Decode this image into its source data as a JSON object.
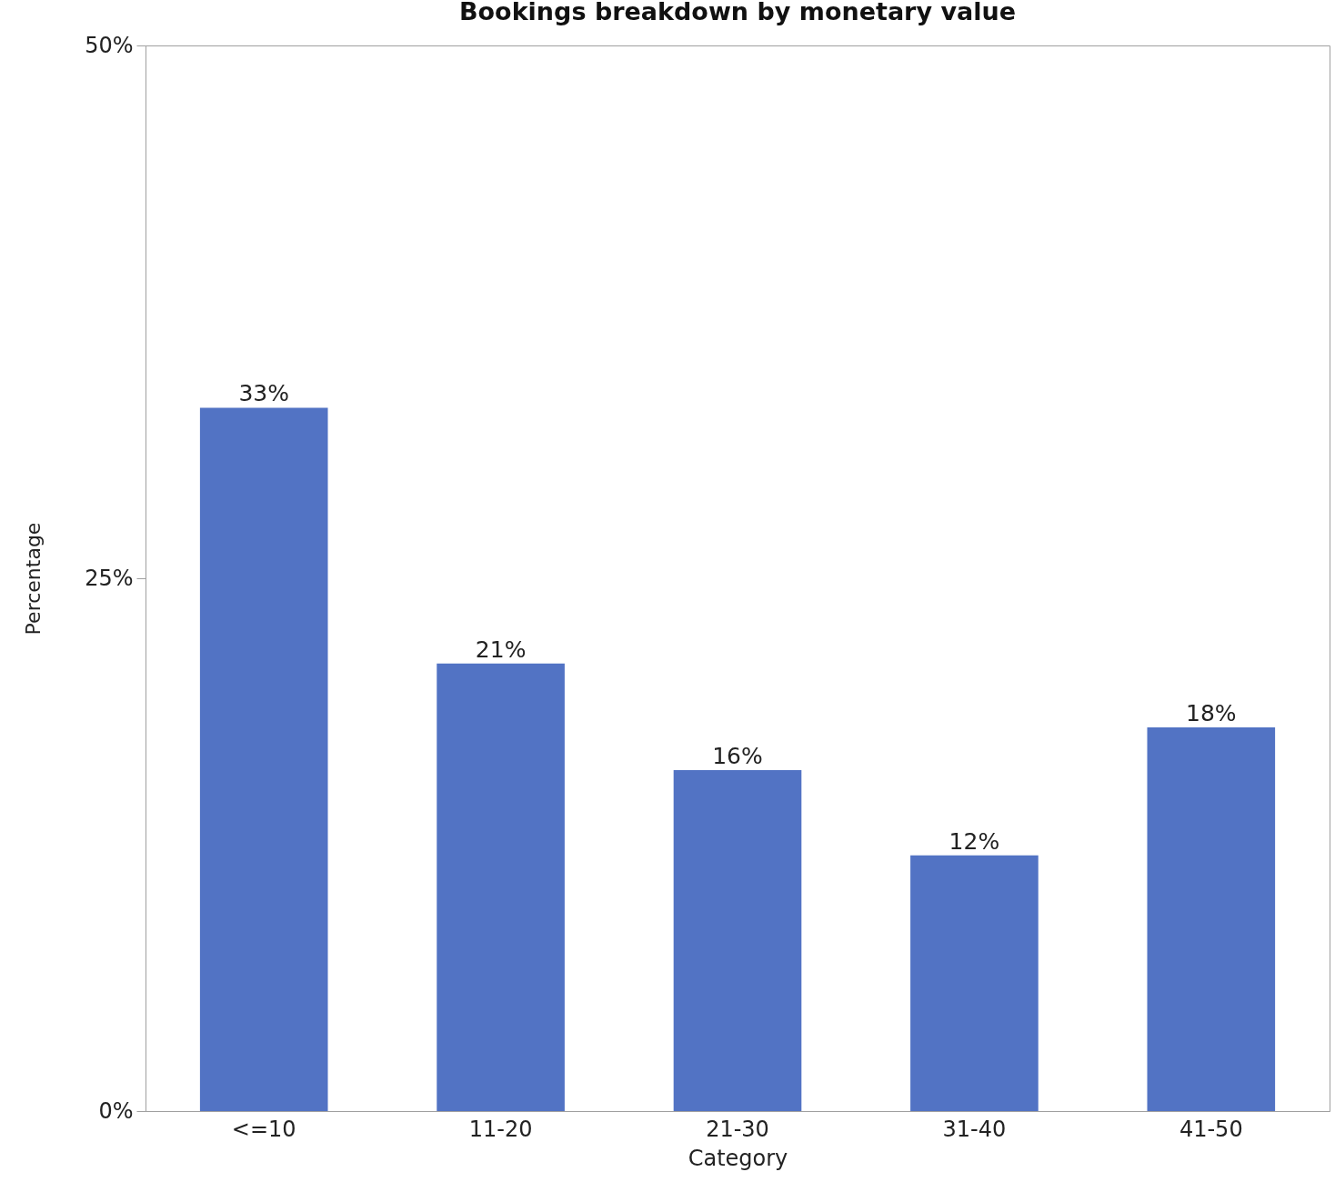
{
  "chart_data": {
    "type": "bar",
    "title": "Bookings breakdown by monetary value",
    "xlabel": "Category",
    "ylabel": "Percentage",
    "categories": [
      "<=10",
      "11-20",
      "21-30",
      "31-40",
      "41-50"
    ],
    "values": [
      33,
      21,
      16,
      12,
      18
    ],
    "value_labels": [
      "33%",
      "21%",
      "16%",
      "12%",
      "18%"
    ],
    "color": "#5273c4",
    "ylim": [
      0,
      50
    ],
    "yticks": [
      {
        "value": 0,
        "label": "0%"
      },
      {
        "value": 25,
        "label": "25%"
      },
      {
        "value": 50,
        "label": "50%"
      }
    ]
  }
}
